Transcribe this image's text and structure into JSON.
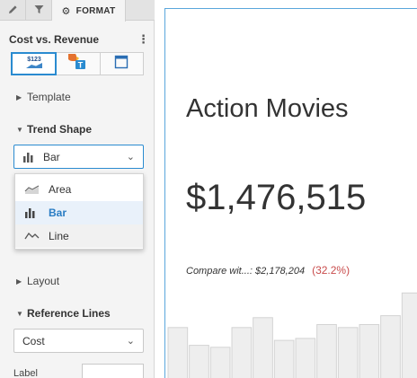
{
  "tabs": {
    "format_label": "FORMAT"
  },
  "panel": {
    "title": "Cost vs. Revenue",
    "viz_options": [
      "kpi-value-icon",
      "kpi-chart-icon",
      "kpi-frame-icon"
    ],
    "sections": {
      "template": "Template",
      "trend_shape": "Trend Shape",
      "layout": "Layout",
      "reference_lines": "Reference Lines"
    },
    "trend_shape_select": {
      "value": "Bar"
    },
    "trend_shape_options": [
      {
        "label": "Area",
        "icon": "area-chart-icon"
      },
      {
        "label": "Bar",
        "icon": "bar-chart-icon",
        "selected": true
      },
      {
        "label": "Line",
        "icon": "line-chart-icon"
      }
    ],
    "reference_select": {
      "value": "Cost"
    },
    "label_field": {
      "label": "Label",
      "value": ""
    }
  },
  "kpi": {
    "title": "Action Movies",
    "value": "$1,476,515",
    "compare_text": "Compare wit...: $2,178,204",
    "compare_pct": "(32.2%)",
    "compare_color": "#c84b4b"
  },
  "colors": {
    "accent": "#2a8bd0",
    "trend_fill": "#eeeeee",
    "trend_stroke": "#d3d3d3"
  },
  "chart_data": {
    "type": "bar",
    "values": [
      52,
      34,
      32,
      52,
      62,
      39,
      41,
      55,
      52,
      55,
      64,
      87
    ]
  }
}
